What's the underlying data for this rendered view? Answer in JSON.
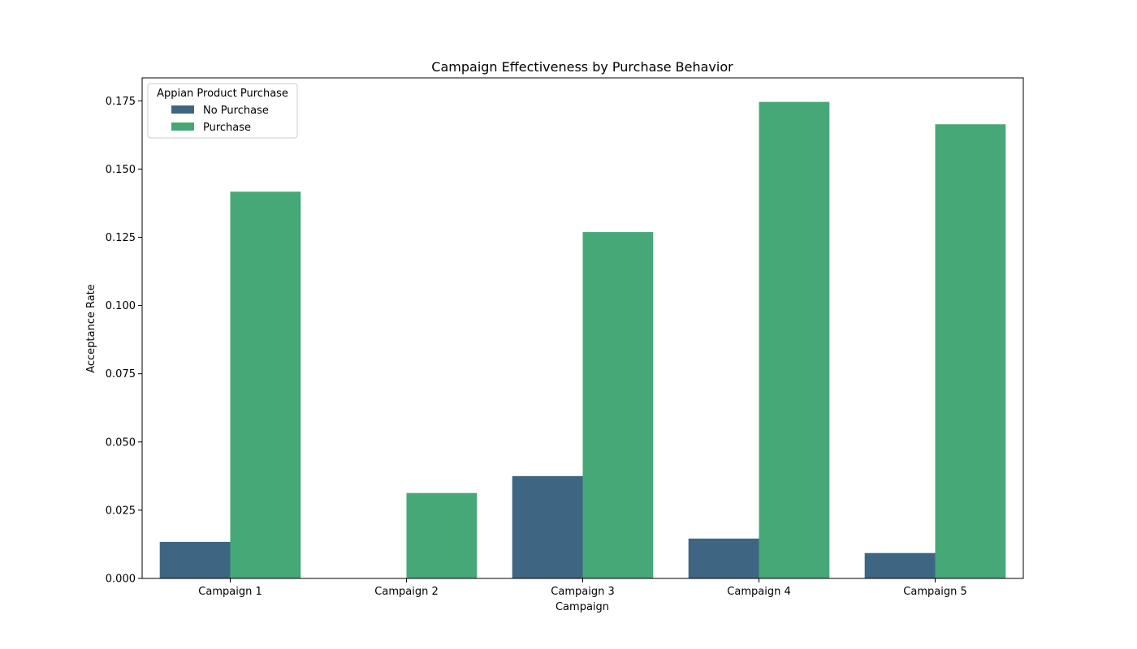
{
  "chart_data": {
    "type": "bar",
    "title": "Campaign Effectiveness by Purchase Behavior",
    "xlabel": "Campaign",
    "ylabel": "Acceptance Rate",
    "categories": [
      "Campaign 1",
      "Campaign 2",
      "Campaign 3",
      "Campaign 4",
      "Campaign 5"
    ],
    "series": [
      {
        "name": "No Purchase",
        "color": "#3e6683",
        "values": [
          0.0134,
          0.0,
          0.0375,
          0.0146,
          0.0093
        ]
      },
      {
        "name": "Purchase",
        "color": "#46a877",
        "values": [
          0.1417,
          0.0313,
          0.1269,
          0.1746,
          0.1664
        ]
      }
    ],
    "ylim": [
      0,
      0.1834
    ],
    "yticks": [
      0.0,
      0.025,
      0.05,
      0.075,
      0.1,
      0.125,
      0.15,
      0.175
    ],
    "ytick_labels": [
      "0.000",
      "0.025",
      "0.050",
      "0.075",
      "0.100",
      "0.125",
      "0.150",
      "0.175"
    ],
    "legend": {
      "title": "Appian Product Purchase",
      "position": "top-left"
    },
    "grid": false
  }
}
